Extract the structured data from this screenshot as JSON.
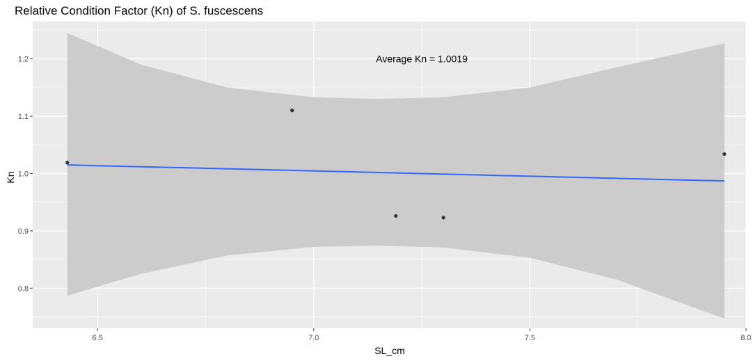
{
  "chart_data": {
    "type": "scatter",
    "title": "Relative Condition Factor (Kn) of S. fuscescens",
    "xlabel": "SL_cm",
    "ylabel": "Kn",
    "xlim": [
      6.35,
      8.0
    ],
    "ylim": [
      0.73,
      1.265
    ],
    "x_ticks": [
      6.5,
      7.0,
      7.5,
      8.0
    ],
    "x_tick_labels": [
      "6.5",
      "7.0",
      "7.5",
      "8.0"
    ],
    "y_ticks": [
      0.8,
      0.9,
      1.0,
      1.1,
      1.2
    ],
    "y_tick_labels": [
      "0.8",
      "0.9",
      "1.0",
      "1.1",
      "1.2"
    ],
    "grid": true,
    "annotation": {
      "text": "Average Kn = 1.0019",
      "x": 7.25,
      "y": 1.2
    },
    "points": [
      {
        "x": 6.43,
        "y": 1.019
      },
      {
        "x": 6.95,
        "y": 1.11
      },
      {
        "x": 7.19,
        "y": 0.926
      },
      {
        "x": 7.3,
        "y": 0.923
      },
      {
        "x": 7.95,
        "y": 1.034
      }
    ],
    "fit_line": {
      "x": [
        6.43,
        7.95
      ],
      "y": [
        1.015,
        0.987
      ]
    },
    "confidence_band": {
      "x": [
        6.43,
        6.6,
        6.8,
        7.0,
        7.15,
        7.3,
        7.5,
        7.7,
        7.95
      ],
      "upper": [
        1.245,
        1.19,
        1.15,
        1.133,
        1.13,
        1.133,
        1.15,
        1.185,
        1.227
      ],
      "lower": [
        0.787,
        0.825,
        0.857,
        0.872,
        0.874,
        0.871,
        0.853,
        0.815,
        0.747
      ]
    },
    "colors": {
      "panel": "#ebebeb",
      "grid_major": "#ffffff",
      "band": "#cccccc",
      "line": "#3366ff",
      "point": "#333333",
      "tick_text": "#4d4d4d",
      "text": "#000000"
    }
  }
}
